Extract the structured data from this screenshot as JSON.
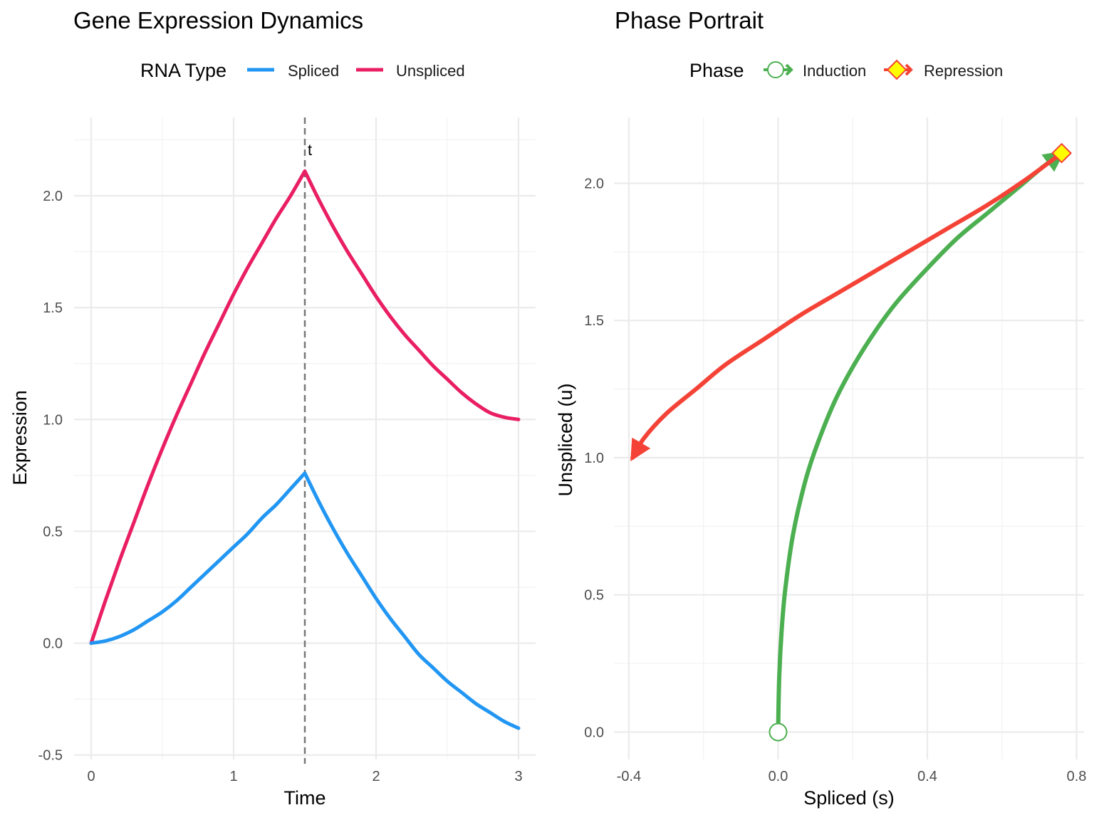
{
  "chart_data": [
    {
      "type": "line",
      "title": "Gene Expression Dynamics",
      "xlabel": "Time",
      "ylabel": "Expression",
      "xlim": [
        -0.12,
        3.12
      ],
      "ylim": [
        -0.52,
        2.35
      ],
      "xticks": [
        0,
        1,
        2,
        3
      ],
      "yticks": [
        -0.5,
        0.0,
        0.5,
        1.0,
        1.5,
        2.0
      ],
      "xtick_labels": [
        "0",
        "1",
        "2",
        "3"
      ],
      "ytick_labels": [
        "-0.5",
        "0.0",
        "0.5",
        "1.0",
        "1.5",
        "2.0"
      ],
      "grid": true,
      "legend": {
        "title": "RNA Type",
        "position": "top",
        "entries": [
          "Spliced",
          "Unspliced"
        ]
      },
      "series": [
        {
          "name": "Spliced",
          "color": "#2196F3",
          "x": [
            0,
            0.1,
            0.2,
            0.3,
            0.4,
            0.5,
            0.6,
            0.7,
            0.8,
            0.9,
            1.0,
            1.1,
            1.2,
            1.3,
            1.4,
            1.5,
            1.6,
            1.7,
            1.8,
            1.9,
            2.0,
            2.1,
            2.2,
            2.3,
            2.4,
            2.5,
            2.6,
            2.7,
            2.8,
            2.9,
            3.0
          ],
          "y": [
            0,
            0.01,
            0.03,
            0.06,
            0.1,
            0.14,
            0.19,
            0.25,
            0.31,
            0.37,
            0.43,
            0.49,
            0.56,
            0.62,
            0.69,
            0.76,
            0.63,
            0.51,
            0.4,
            0.3,
            0.2,
            0.11,
            0.03,
            -0.05,
            -0.11,
            -0.17,
            -0.22,
            -0.27,
            -0.31,
            -0.35,
            -0.38
          ]
        },
        {
          "name": "Unspliced",
          "color": "#E91E63",
          "x": [
            0,
            0.1,
            0.2,
            0.3,
            0.4,
            0.5,
            0.6,
            0.7,
            0.8,
            0.9,
            1.0,
            1.1,
            1.2,
            1.3,
            1.4,
            1.5,
            1.6,
            1.7,
            1.8,
            1.9,
            2.0,
            2.1,
            2.2,
            2.3,
            2.4,
            2.5,
            2.6,
            2.7,
            2.8,
            2.9,
            3.0
          ],
          "y": [
            0,
            0.19,
            0.37,
            0.54,
            0.71,
            0.87,
            1.02,
            1.16,
            1.3,
            1.43,
            1.56,
            1.68,
            1.79,
            1.9,
            2.0,
            2.11,
            1.98,
            1.86,
            1.75,
            1.65,
            1.55,
            1.46,
            1.38,
            1.31,
            1.24,
            1.18,
            1.12,
            1.07,
            1.03,
            1.01,
            1.0
          ]
        }
      ],
      "annotations": [
        {
          "type": "vline",
          "x": 1.5,
          "style": "dashed",
          "color": "#777777"
        },
        {
          "type": "text",
          "x": 1.55,
          "y": 2.2,
          "text": "t"
        }
      ]
    },
    {
      "type": "line",
      "title": "Phase Portrait",
      "xlabel": "Spliced (s)",
      "ylabel": "Unspliced (u)",
      "xlim": [
        -0.44,
        0.82
      ],
      "ylim": [
        -0.1,
        2.24
      ],
      "xticks": [
        -0.4,
        0.0,
        0.4,
        0.8
      ],
      "yticks": [
        0.0,
        0.5,
        1.0,
        1.5,
        2.0
      ],
      "xtick_labels": [
        "-0.4",
        "0.0",
        "0.4",
        "0.8"
      ],
      "ytick_labels": [
        "0.0",
        "0.5",
        "1.0",
        "1.5",
        "2.0"
      ],
      "grid": true,
      "legend": {
        "title": "Phase",
        "position": "top",
        "entries": [
          "Induction",
          "Repression"
        ]
      },
      "series": [
        {
          "name": "Induction",
          "color": "#4CAF50",
          "x": [
            0.0,
            0.003,
            0.01,
            0.02,
            0.04,
            0.07,
            0.1,
            0.15,
            0.2,
            0.26,
            0.32,
            0.4,
            0.48,
            0.56,
            0.64,
            0.71,
            0.76
          ],
          "y": [
            0.0,
            0.2,
            0.38,
            0.53,
            0.72,
            0.9,
            1.03,
            1.2,
            1.33,
            1.46,
            1.57,
            1.69,
            1.8,
            1.89,
            1.98,
            2.06,
            2.11
          ],
          "arrow": "end",
          "start_marker": "open-circle"
        },
        {
          "name": "Repression",
          "color": "#F44336",
          "x": [
            0.76,
            0.66,
            0.56,
            0.46,
            0.36,
            0.26,
            0.16,
            0.06,
            -0.04,
            -0.14,
            -0.22,
            -0.3,
            -0.36,
            -0.39
          ],
          "y": [
            2.11,
            2.01,
            1.92,
            1.84,
            1.76,
            1.68,
            1.6,
            1.52,
            1.43,
            1.34,
            1.25,
            1.16,
            1.07,
            1.0
          ],
          "arrow": "end",
          "start_marker": "yellow-diamond"
        }
      ],
      "markers": [
        {
          "name": "Induction start",
          "shape": "circle",
          "x": 0.0,
          "y": 0.0,
          "fill": "#ffffff",
          "stroke": "#4CAF50"
        },
        {
          "name": "Repression start",
          "shape": "diamond",
          "x": 0.76,
          "y": 2.11,
          "fill": "#FFFF00",
          "stroke": "#F44336"
        }
      ]
    }
  ]
}
